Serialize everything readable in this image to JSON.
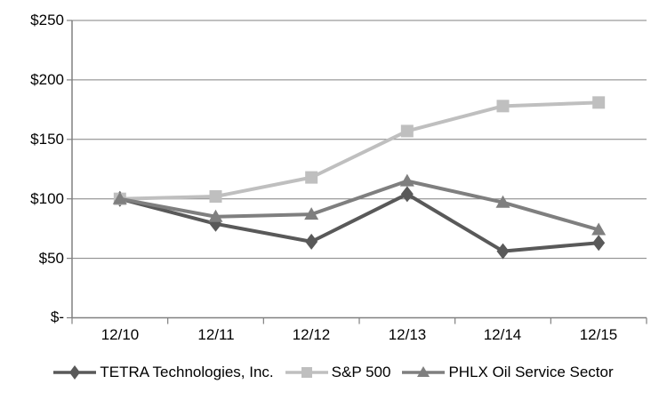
{
  "chart_data": {
    "type": "line",
    "categories": [
      "12/10",
      "12/11",
      "12/12",
      "12/13",
      "12/14",
      "12/15"
    ],
    "series": [
      {
        "name": "TETRA Technologies, Inc.",
        "marker": "diamond",
        "color": "#595959",
        "values": [
          100,
          79,
          64,
          104,
          56,
          63
        ]
      },
      {
        "name": "S&P 500",
        "marker": "square",
        "color": "#bfbfbf",
        "values": [
          100,
          102,
          118,
          157,
          178,
          181
        ]
      },
      {
        "name": "PHLX Oil Service Sector",
        "marker": "triangle",
        "color": "#7f7f7f",
        "values": [
          100,
          85,
          87,
          115,
          97,
          74
        ]
      }
    ],
    "ylim": [
      0,
      250
    ],
    "ytick_values": [
      0,
      50,
      100,
      150,
      200,
      250
    ],
    "ytick_labels": [
      "$-",
      "$50",
      "$100",
      "$150",
      "$200",
      "$250"
    ],
    "xlabel": "",
    "ylabel": "",
    "grid": "horizontal",
    "legend_position": "bottom",
    "axis_color": "#808080",
    "text_color": "#000000",
    "background_color": "#ffffff"
  }
}
